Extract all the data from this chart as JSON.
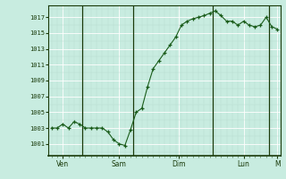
{
  "x_values": [
    0,
    1,
    2,
    3,
    4,
    5,
    6,
    7,
    8,
    9,
    10,
    11,
    12,
    13,
    14,
    15,
    16,
    17,
    18,
    19,
    20,
    21,
    22,
    23,
    24,
    25,
    26,
    27,
    28,
    29,
    30,
    31,
    32,
    33,
    34,
    35,
    36,
    37,
    38,
    39,
    40
  ],
  "y_values": [
    1003,
    1003,
    1003.5,
    1003,
    1003.8,
    1003.5,
    1003,
    1003,
    1003,
    1003,
    1002.5,
    1001.5,
    1001,
    1000.8,
    1002.8,
    1005,
    1005.5,
    1008.2,
    1010.5,
    1011.5,
    1012.5,
    1013.5,
    1014.5,
    1016,
    1016.5,
    1016.8,
    1017,
    1017.2,
    1017.5,
    1017.8,
    1017.2,
    1016.5,
    1016.5,
    1016,
    1016.5,
    1016,
    1015.8,
    1016,
    1017,
    1015.8,
    1015.5
  ],
  "xtick_positions": [
    2,
    12,
    22.5,
    34,
    40
  ],
  "xtick_labels": [
    "Ven",
    "Sam",
    "Dim",
    "Lun",
    "M"
  ],
  "day_vlines": [
    5.5,
    14.5,
    28.5,
    38.5
  ],
  "ytick_start": 1001,
  "ytick_end": 1017,
  "ytick_step": 2,
  "ylim": [
    999.5,
    1018.5
  ],
  "xlim": [
    -0.5,
    40.5
  ],
  "line_color": "#1a5c1a",
  "marker_color": "#1a5c1a",
  "bg_color": "#c8ece0",
  "grid_color_major": "#ffffff",
  "grid_color_minor": "#b8ddd0",
  "axes_color": "#1a3a0a",
  "tick_color": "#507a50"
}
